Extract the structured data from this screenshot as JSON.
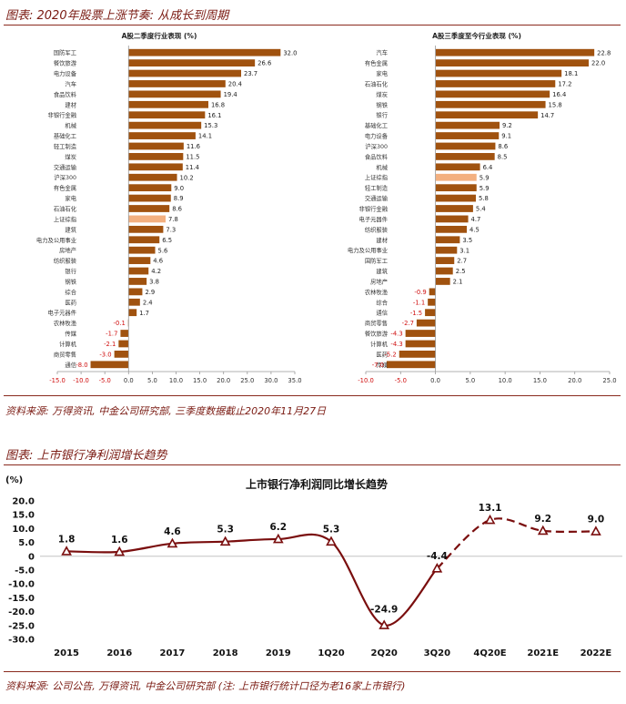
{
  "figure1": {
    "title": "图表: 2020年股票上涨节奏: 从成长到周期",
    "source": "资料来源: 万得资讯, 中金公司研究部, 三季度数据截止2020年11月27日"
  },
  "figure2": {
    "title": "图表: 上市银行净利润增长趋势",
    "source": "资料来源: 公司公告, 万得资讯, 中金公司研究部 (注: 上市银行统计口径为老16家上市银行)"
  },
  "colors": {
    "bar": "#a0520f",
    "highlight": "#f3b080",
    "line": "#7a0e0e",
    "negative_label": "#d01010",
    "accent": "#7a1a12"
  },
  "chart_data": [
    {
      "type": "bar",
      "orientation": "horizontal",
      "title": "A股二季度行业表现 (%)",
      "categories": [
        "国防军工",
        "餐饮旅游",
        "电力设备",
        "汽车",
        "食品饮料",
        "建材",
        "非银行金融",
        "机械",
        "基础化工",
        "轻工制造",
        "煤炭",
        "交通运输",
        "沪深300",
        "有色金属",
        "家电",
        "石油石化",
        "上证综指",
        "建筑",
        "电力及公用事业",
        "房地产",
        "纺织服装",
        "银行",
        "钢铁",
        "综合",
        "医药",
        "电子元器件",
        "农林牧渔",
        "传媒",
        "计算机",
        "商贸零售",
        "通信"
      ],
      "values": [
        32.0,
        26.6,
        23.7,
        20.4,
        19.4,
        16.8,
        16.1,
        15.3,
        14.1,
        11.6,
        11.5,
        11.4,
        10.2,
        9.0,
        8.9,
        8.6,
        7.8,
        7.3,
        6.5,
        5.6,
        4.6,
        4.2,
        3.8,
        2.9,
        2.4,
        1.7,
        -0.1,
        -1.7,
        -2.1,
        -3.0,
        -8.0
      ],
      "highlight": [
        "上证综指"
      ],
      "xlim": [
        -15,
        35
      ],
      "xticks": [
        "-15.0",
        "-10.0",
        "-5.0",
        "0.0",
        "5.0",
        "10.0",
        "15.0",
        "20.0",
        "25.0",
        "30.0",
        "35.0"
      ]
    },
    {
      "type": "bar",
      "orientation": "horizontal",
      "title": "A股三季度至今行业表现 (%)",
      "categories": [
        "汽车",
        "有色金属",
        "家电",
        "石油石化",
        "煤炭",
        "钢铁",
        "银行",
        "基础化工",
        "电力设备",
        "沪深300",
        "食品饮料",
        "机械",
        "上证综指",
        "轻工制造",
        "交通运输",
        "非银行金融",
        "电子元器件",
        "纺织服装",
        "建材",
        "电力及公用事业",
        "国防军工",
        "建筑",
        "房地产",
        "农林牧渔",
        "综合",
        "通信",
        "商贸零售",
        "餐饮旅游",
        "计算机",
        "医药",
        "传媒"
      ],
      "values": [
        22.8,
        22.0,
        18.1,
        17.2,
        16.4,
        15.8,
        14.7,
        9.2,
        9.1,
        8.6,
        8.5,
        6.4,
        5.9,
        5.9,
        5.8,
        5.4,
        4.7,
        4.5,
        3.5,
        3.1,
        2.7,
        2.5,
        2.1,
        -0.9,
        -1.1,
        -1.5,
        -2.7,
        -4.3,
        -4.3,
        -5.2,
        -7.0
      ],
      "highlight": [
        "上证综指"
      ],
      "xlim": [
        -10,
        25
      ],
      "xticks": [
        "-10.0",
        "-5.0",
        "0.0",
        "5.0",
        "10.0",
        "15.0",
        "20.0",
        "25.0"
      ]
    },
    {
      "type": "line",
      "title": "上市银行净利润同比增长趋势",
      "ylabel": "(%)",
      "categories": [
        "2015",
        "2016",
        "2017",
        "2018",
        "2019",
        "1Q20",
        "2Q20",
        "3Q20",
        "4Q20E",
        "2021E",
        "2022E"
      ],
      "values": [
        1.8,
        1.6,
        4.6,
        5.3,
        6.2,
        5.3,
        -24.9,
        -4.4,
        13.1,
        9.2,
        9.0
      ],
      "labels": [
        "1.8",
        "1.6",
        "4.6",
        "5.3",
        "6.2",
        "5.3",
        "-24.9",
        "-4.4",
        "13.1",
        "9.2",
        "9.0"
      ],
      "actual_count": 8,
      "ylim": [
        -30,
        20
      ],
      "yticks": [
        "20.0",
        "15.0",
        "10.0",
        "5.0",
        "0",
        "-5.0",
        "-10.0",
        "-15.0",
        "-20.0",
        "-25.0",
        "-30.0"
      ]
    }
  ]
}
